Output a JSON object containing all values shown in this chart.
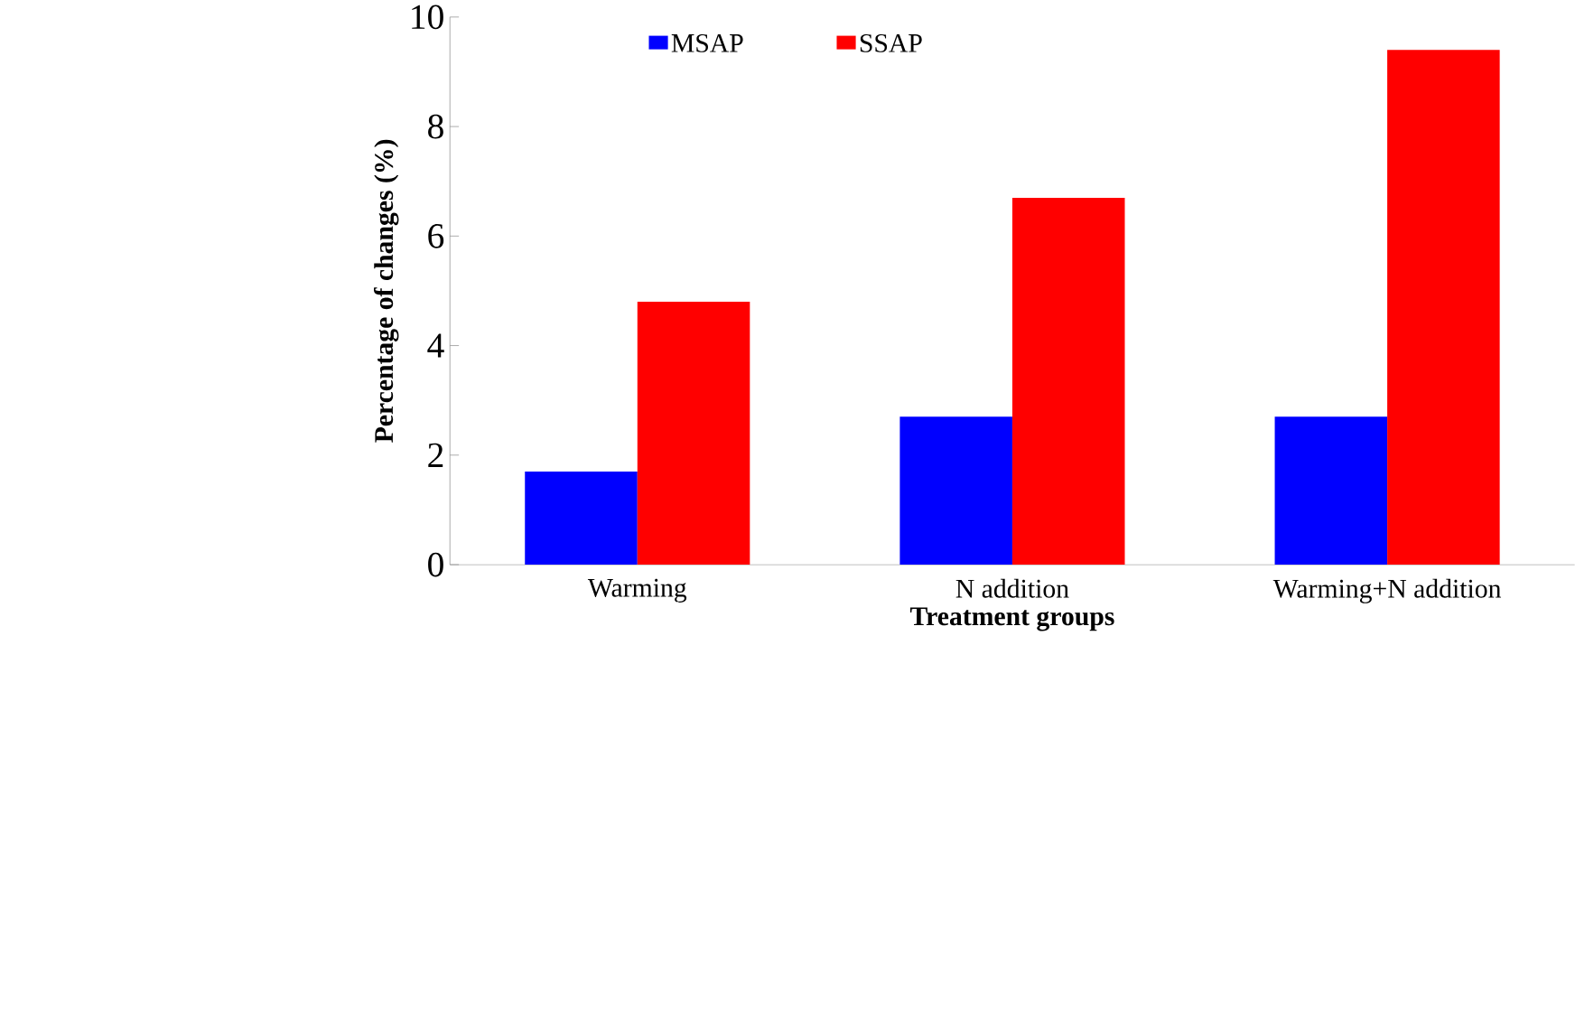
{
  "chart_data": {
    "type": "bar",
    "xlabel": "Treatment groups",
    "ylabel": "Percentage of changes (%)",
    "categories": [
      "Warming",
      "N addition",
      "Warming+N addition"
    ],
    "series": [
      {
        "name": "MSAP",
        "color": "#0000ff",
        "values": [
          1.7,
          2.7,
          2.7
        ]
      },
      {
        "name": "SSAP",
        "color": "#ff0000",
        "values": [
          4.8,
          6.7,
          9.4
        ]
      }
    ],
    "ylim": [
      0,
      10
    ],
    "yticks": [
      0,
      2,
      4,
      6,
      8,
      10
    ],
    "legend": "top",
    "grid": false
  }
}
